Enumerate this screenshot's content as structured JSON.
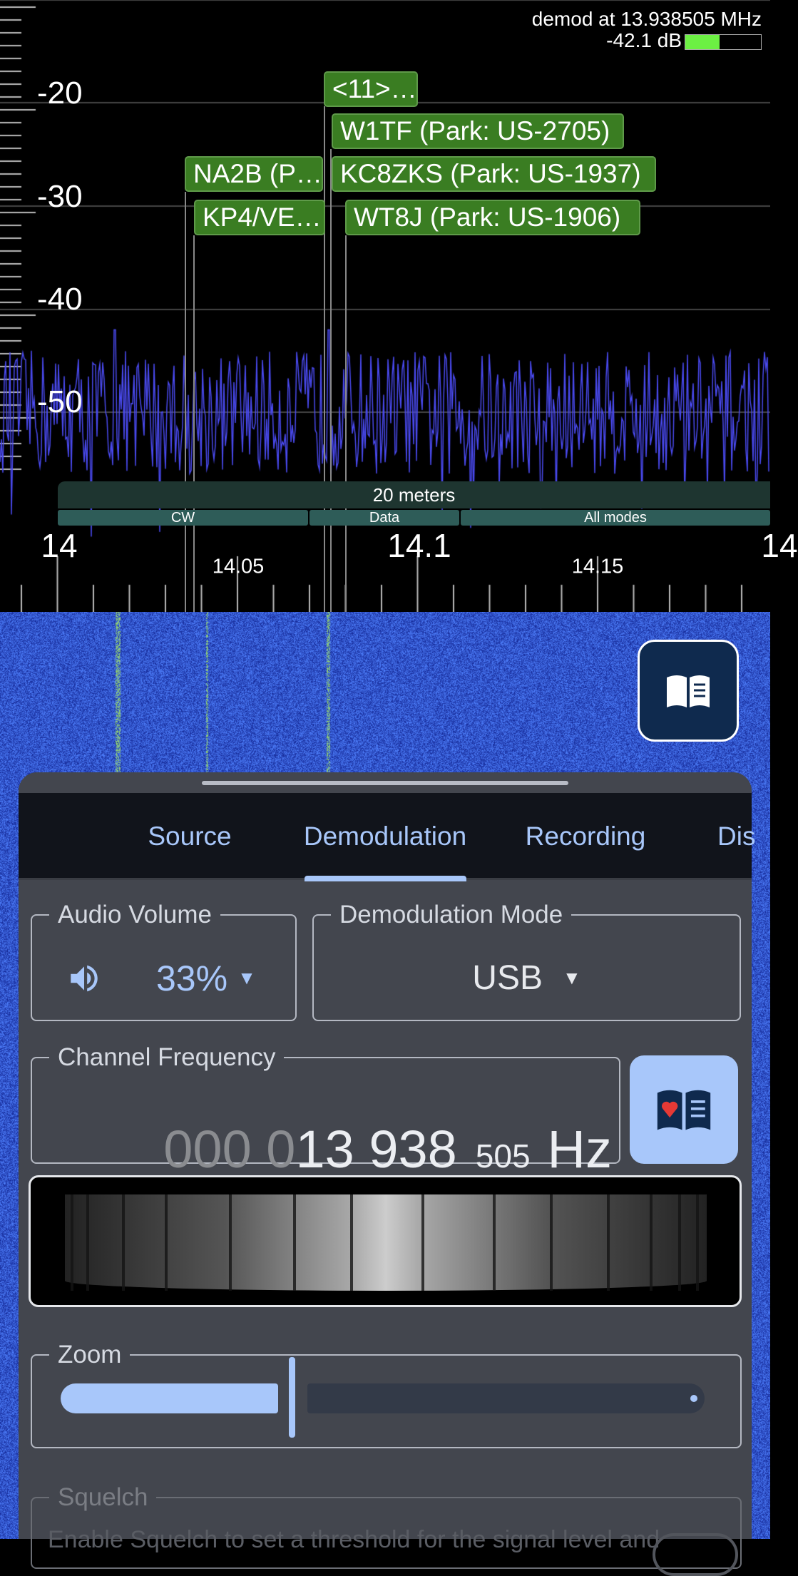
{
  "spectrum": {
    "y_ticks": [
      "-20",
      "-30",
      "-40",
      "-50"
    ],
    "x_major": [
      "14",
      "14.1",
      "14"
    ],
    "x_minor": [
      "14.05",
      "14.15"
    ],
    "demod_label": "demod at 13.938505 MHz",
    "level_label": "-42.1 dB",
    "level_fraction": 0.45,
    "trace_color": "#4a4af0",
    "markers": [
      {
        "label": "<11>…"
      },
      {
        "label": "W1TF (Park: US-2705)"
      },
      {
        "label": "NA2B (P…"
      },
      {
        "label": "KC8ZKS (Park: US-1937)"
      },
      {
        "label": "KP4/VE…"
      },
      {
        "label": "WT8J (Park: US-1906)"
      }
    ],
    "band": {
      "name": "20 meters",
      "segments": [
        "CW",
        "Data",
        "All modes"
      ]
    }
  },
  "panel": {
    "tabs": [
      "Source",
      "Demodulation",
      "Recording",
      "Dis"
    ],
    "active_tab": "Demodulation",
    "audio_volume": {
      "label": "Audio Volume",
      "value": "33%"
    },
    "demod_mode": {
      "label": "Demodulation Mode",
      "value": "USB"
    },
    "channel_frequency": {
      "label": "Channel Frequency",
      "dim": "000 0",
      "main": "13 938",
      "small": "505",
      "unit": "Hz"
    },
    "zoom": {
      "label": "Zoom",
      "value_fraction": 0.35
    },
    "squelch": {
      "label": "Squelch",
      "description": "Enable Squelch to set a threshold for the signal level and"
    }
  },
  "accent": "#a8c7fa"
}
